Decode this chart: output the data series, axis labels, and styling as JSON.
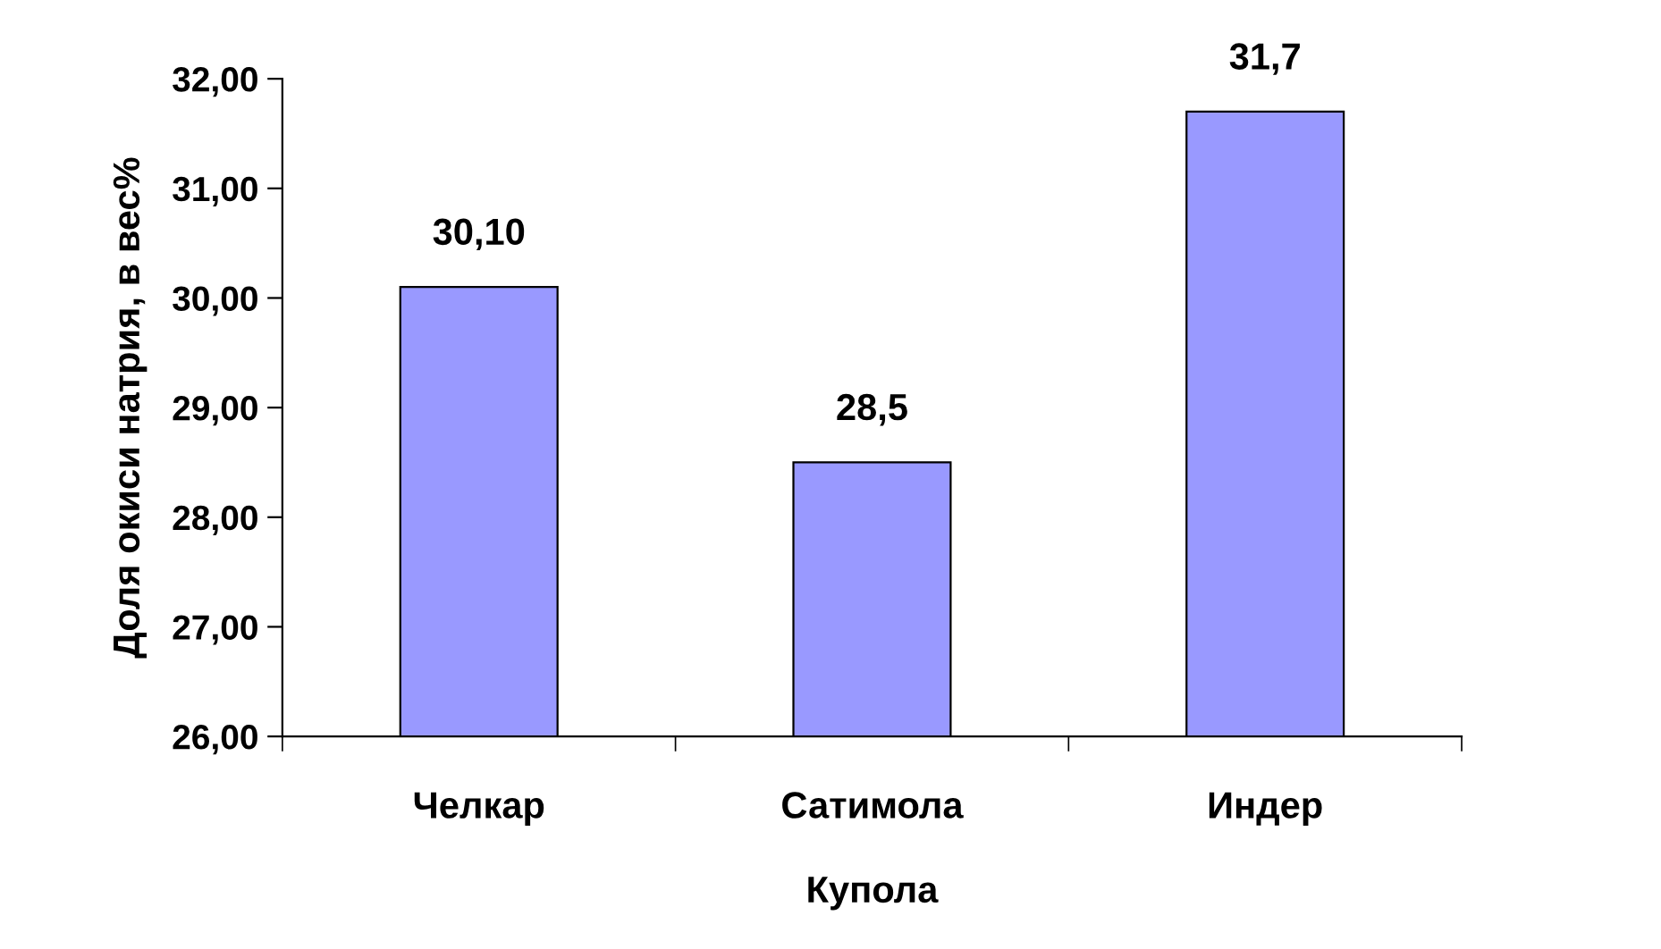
{
  "chart_data": {
    "type": "bar",
    "xlabel": "Купола",
    "ylabel": "Доля окиси натрия, в вес%",
    "categories": [
      "Челкар",
      "Сатимола",
      "Индер"
    ],
    "values": [
      30.1,
      28.5,
      31.7
    ],
    "value_labels": [
      "30,10",
      "28,5",
      "31,7"
    ],
    "color": "#9999ff",
    "ylim": [
      26,
      32
    ],
    "yticks": [
      {
        "value": 26,
        "label": "26,00"
      },
      {
        "value": 27,
        "label": "27,00"
      },
      {
        "value": 28,
        "label": "28,00"
      },
      {
        "value": 29,
        "label": "29,00"
      },
      {
        "value": 30,
        "label": "30,00"
      },
      {
        "value": 31,
        "label": "31,00"
      },
      {
        "value": 32,
        "label": "32,00"
      }
    ],
    "grid": false
  }
}
